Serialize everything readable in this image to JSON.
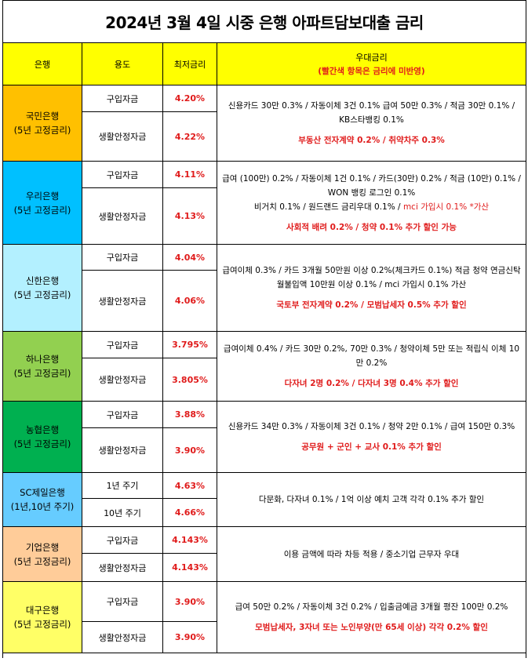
{
  "title": "2024년 3월 4일 시중 은행 아파트담보대출 금리",
  "header": {
    "bank": "은행",
    "use": "용도",
    "rate": "최저금리",
    "pref": "우대금리",
    "pref_note": "(빨간색 항목은 금리에 미반영)"
  },
  "banks": [
    {
      "name": "국민은행",
      "term": "(5년 고정금리)",
      "color": "#ffc000",
      "rows": [
        {
          "use": "구입자금",
          "rate": "4.20%"
        },
        {
          "use": "생활안정자금",
          "rate": "4.22%"
        }
      ],
      "desc": "신용카드 30만 0.3% / 자동이체 3건 0.1% 급여 50만 0.3% / 적금 30만 0.1% / KB스타뱅킹 0.1%",
      "desc2": "",
      "red": "부동산 전자계약 0.2% / 취약차주 0.3%"
    },
    {
      "name": "우리은행",
      "term": "(5년 고정금리)",
      "color": "#00c0ff",
      "rows": [
        {
          "use": "구입자금",
          "rate": "4.11%"
        },
        {
          "use": "생활안정자금",
          "rate": "4.13%"
        }
      ],
      "desc": "급여 (100만) 0.2% / 자동이체 1건 0.1% / 카드(30만) 0.2% / 적금 (10만) 0.1% / WON 뱅킹 로그인 0.1%",
      "desc2": "비거치 0.1% / 원드랜드 금리우대 0.1% / ",
      "desc2_red": "mci 가입시 0.1% *가산",
      "red": "사회적 배려 0.2% / 청약 0.1% 추가 할인 가능"
    },
    {
      "name": "신한은행",
      "term": "(5년 고정금리)",
      "color": "#b3f0ff",
      "rows": [
        {
          "use": "구입자금",
          "rate": "4.04%"
        },
        {
          "use": "생활안정자금",
          "rate": "4.06%"
        }
      ],
      "desc": "급여이체 0.3% / 카드 3개월 50만원 이상 0.2%(체크카드 0.1%) 적금 청약 연금신탁 월불입액 10만원 이상 0.1% / mci 가입시 0.1% 가산",
      "desc2": "",
      "red": "국토부 전자계약 0.2% / 모범납세자 0.5% 추가 할인"
    },
    {
      "name": "하나은행",
      "term": "(5년 고정금리)",
      "color": "#92d050",
      "rows": [
        {
          "use": "구입자금",
          "rate": "3.795%"
        },
        {
          "use": "생활안정자금",
          "rate": "3.805%"
        }
      ],
      "desc": "급여이체 0.4% / 카드 30만 0.2%, 70만 0.3% / 청약이체 5만 또는 적립식 이체 10만 0.2%",
      "desc2": "",
      "red": "다자녀 2명 0.2% / 다자녀 3명 0.4% 추가 할인"
    },
    {
      "name": "농협은행",
      "term": "(5년 고정금리)",
      "color": "#00b050",
      "rows": [
        {
          "use": "구입자금",
          "rate": "3.88%"
        },
        {
          "use": "생활안정자금",
          "rate": "3.90%"
        }
      ],
      "desc": "신용카드 34만 0.3% / 자동이체 3건 0.1% / 청약 2만 0.1% / 급여 150만 0.3%",
      "desc2": "",
      "red": "공무원 + 군인 + 교사 0.1% 추가 할인"
    },
    {
      "name": "SC제일은행",
      "term": "(1년,10년 주기)",
      "color": "#66ccff",
      "rows": [
        {
          "use": "1년 주기",
          "rate": "4.63%"
        },
        {
          "use": "10년 주기",
          "rate": "4.66%"
        }
      ],
      "desc": "다문화, 다자녀 0.1% / 1억 이상 예치 고객 각각 0.1% 추가 할인",
      "desc2": "",
      "red": ""
    },
    {
      "name": "기업은행",
      "term": "(5년 고정금리)",
      "color": "#ffcc99",
      "rows": [
        {
          "use": "구입자금",
          "rate": "4.143%"
        },
        {
          "use": "생활안정자금",
          "rate": "4.143%"
        }
      ],
      "desc": "이용 금액에 따라 차등 적용 / 중소기업 근무자 우대",
      "desc2": "",
      "red": ""
    },
    {
      "name": "대구은행",
      "term": "(5년 고정금리)",
      "color": "#ffff66",
      "rows": [
        {
          "use": "구입자금",
          "rate": "3.90%"
        },
        {
          "use": "생활안정자금",
          "rate": "3.90%"
        }
      ],
      "desc": "급여 50만 0.2% / 자동이체 3건 0.2% / 입출금예금 3개월 평잔 100만 0.2%",
      "desc2": "",
      "red": "모범납세자, 3자녀 또는 노인부양(만 65세 이상) 각각 0.2% 할인"
    }
  ]
}
